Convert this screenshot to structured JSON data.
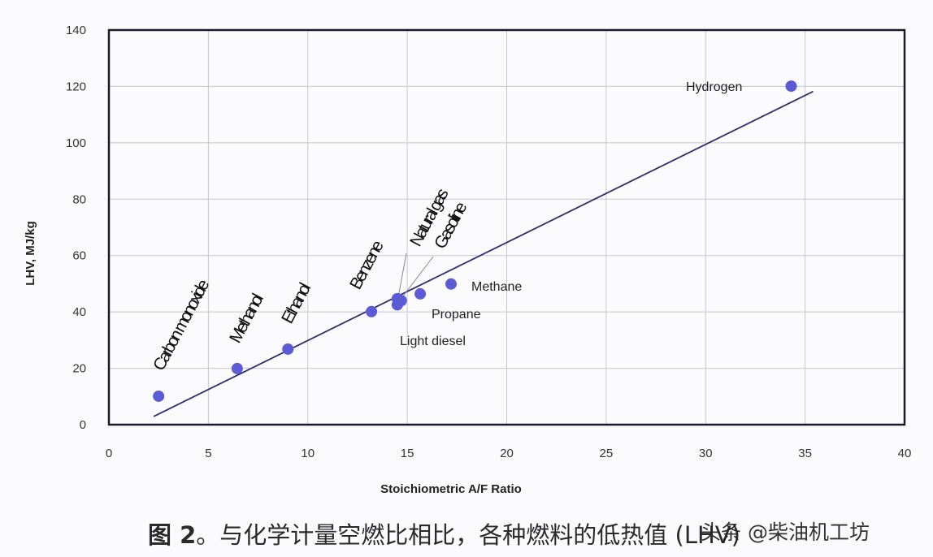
{
  "chart_data": {
    "type": "scatter",
    "title": "",
    "xlabel": "Stoichiometric A/F Ratio",
    "ylabel": "LHV, MJ/kg",
    "xlim": [
      0,
      40
    ],
    "ylim": [
      0,
      140
    ],
    "x_ticks": [
      0,
      5,
      10,
      15,
      20,
      25,
      30,
      35,
      40
    ],
    "y_ticks": [
      0,
      20,
      40,
      60,
      80,
      100,
      120,
      140
    ],
    "grid": true,
    "legend": null,
    "points": [
      {
        "name": "Carbon monoxide",
        "label_text": "Carbon monoxide",
        "x": 2.5,
        "y": 10.1
      },
      {
        "name": "Methanol",
        "label_text": "Methanol",
        "x": 6.45,
        "y": 19.9
      },
      {
        "name": "Ethanol",
        "label_text": "Ethanol",
        "x": 9.0,
        "y": 26.8
      },
      {
        "name": "Benzene",
        "label_text": "Benzene",
        "x": 13.2,
        "y": 40.1
      },
      {
        "name": "Natural gas",
        "label_text": "Natural gas",
        "x": 14.5,
        "y": 44.7
      },
      {
        "name": "Gasoline",
        "label_text": "Gasoline",
        "x": 14.7,
        "y": 44.0
      },
      {
        "name": "Light diesel",
        "label_text": "Light diesel",
        "x": 14.5,
        "y": 42.5
      },
      {
        "name": "Propane",
        "label_text": "Propane",
        "x": 15.65,
        "y": 46.4
      },
      {
        "name": "Methane",
        "label_text": "Methane",
        "x": 17.2,
        "y": 49.9
      },
      {
        "name": "Hydrogen",
        "label_text": "Hydrogen",
        "x": 34.3,
        "y": 120.1
      }
    ],
    "trend_line": {
      "x": [
        2.25,
        35.4
      ],
      "y": [
        2.9,
        118.2
      ]
    },
    "colors": {
      "point": "#5b5bd6",
      "trend": "#2e2e6e",
      "grid": "#c8c8cc",
      "frame": "#1a1a2a"
    }
  },
  "caption": {
    "prefix": "图 2",
    "text": "。与化学计量空燃比相比，各种燃料的低热值 (LHV)"
  },
  "watermark": "头条 @柴油机工坊"
}
